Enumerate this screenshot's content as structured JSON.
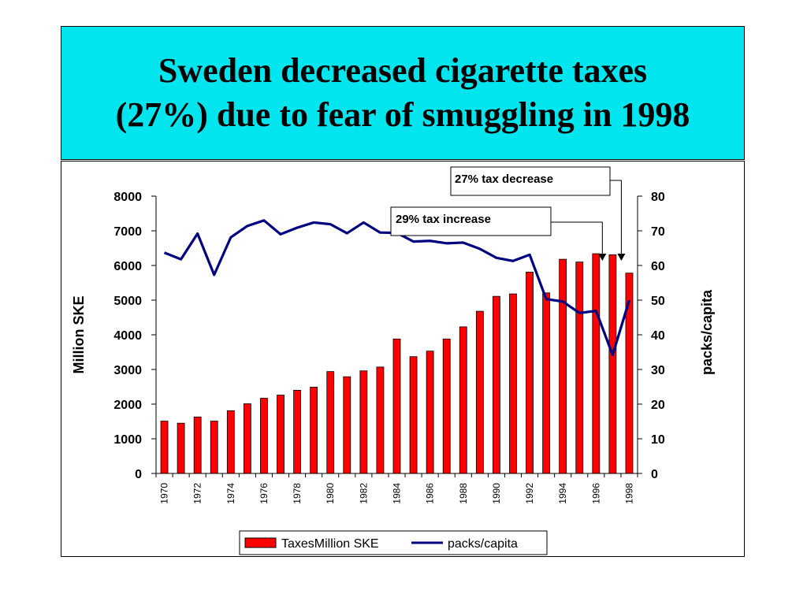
{
  "title": {
    "line1": "Sweden decreased cigarette taxes",
    "line2": "(27%) due to fear of smuggling in 1998"
  },
  "chart_data": {
    "type": "bar",
    "x": [
      "1970",
      "1971",
      "1972",
      "1973",
      "1974",
      "1975",
      "1976",
      "1977",
      "1978",
      "1979",
      "1980",
      "1981",
      "1982",
      "1983",
      "1984",
      "1985",
      "1986",
      "1987",
      "1988",
      "1989",
      "1990",
      "1991",
      "1992",
      "1993",
      "1994",
      "1995",
      "1996",
      "1997",
      "1998"
    ],
    "x_tick_labels": [
      "1970",
      "1972",
      "1974",
      "1976",
      "1978",
      "1980",
      "1982",
      "1984",
      "1986",
      "1988",
      "1990",
      "1992",
      "1994",
      "1996",
      "1998"
    ],
    "series": [
      {
        "name": "TaxesMillion SKE",
        "type": "bar",
        "axis": "left",
        "color": "#ff0000",
        "values": [
          1510,
          1450,
          1630,
          1510,
          1810,
          2010,
          2170,
          2260,
          2400,
          2490,
          2940,
          2790,
          2960,
          3070,
          3880,
          3370,
          3530,
          3880,
          4230,
          4680,
          5110,
          5180,
          5810,
          5210,
          6180,
          6100,
          6340,
          6310,
          5780
        ]
      },
      {
        "name": "packs/capita",
        "type": "line",
        "axis": "right",
        "color": "#000080",
        "values": [
          63.7,
          61.8,
          69.2,
          57.3,
          68.1,
          71.4,
          73.0,
          69.0,
          70.9,
          72.4,
          71.9,
          69.3,
          72.4,
          69.5,
          69.4,
          66.9,
          67.1,
          66.4,
          66.6,
          64.8,
          62.2,
          61.3,
          63.1,
          50.3,
          49.6,
          46.3,
          46.9,
          34.2,
          50.0
        ]
      }
    ],
    "ylabel_left": "Million SKE",
    "ylabel_right": "packs/capita",
    "ylim_left": [
      0,
      8000
    ],
    "ylim_right": [
      0,
      80
    ],
    "y_ticks_left": [
      "0",
      "1000",
      "2000",
      "3000",
      "4000",
      "5000",
      "6000",
      "7000",
      "8000"
    ],
    "y_ticks_right": [
      "0",
      "10",
      "20",
      "30",
      "40",
      "50",
      "60",
      "70",
      "80"
    ],
    "grid": false,
    "legend_position": "bottom",
    "annotations": [
      {
        "text": "27% tax decrease",
        "target_x": "1997"
      },
      {
        "text": "29% tax increase",
        "target_x": "1996"
      }
    ]
  }
}
